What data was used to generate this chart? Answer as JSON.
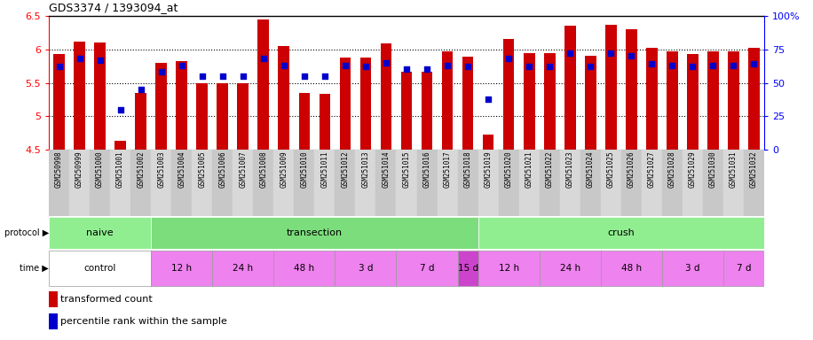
{
  "title": "GDS3374 / 1393094_at",
  "samples": [
    "GSM250998",
    "GSM250999",
    "GSM251000",
    "GSM251001",
    "GSM251002",
    "GSM251003",
    "GSM251004",
    "GSM251005",
    "GSM251006",
    "GSM251007",
    "GSM251008",
    "GSM251009",
    "GSM251010",
    "GSM251011",
    "GSM251012",
    "GSM251013",
    "GSM251014",
    "GSM251015",
    "GSM251016",
    "GSM251017",
    "GSM251018",
    "GSM251019",
    "GSM251020",
    "GSM251021",
    "GSM251022",
    "GSM251023",
    "GSM251024",
    "GSM251025",
    "GSM251026",
    "GSM251027",
    "GSM251028",
    "GSM251029",
    "GSM251030",
    "GSM251031",
    "GSM251032"
  ],
  "red_values": [
    5.93,
    6.12,
    6.1,
    4.63,
    5.35,
    5.8,
    5.82,
    5.5,
    5.5,
    5.5,
    6.45,
    6.05,
    5.35,
    5.33,
    5.88,
    5.88,
    6.09,
    5.67,
    5.66,
    5.97,
    5.89,
    4.72,
    6.16,
    5.95,
    5.95,
    6.36,
    5.91,
    6.37,
    6.3,
    6.02,
    5.97,
    5.93,
    5.97,
    5.97,
    6.02
  ],
  "blue_values": [
    62,
    68,
    67,
    30,
    45,
    58,
    63,
    55,
    55,
    55,
    68,
    63,
    55,
    55,
    63,
    62,
    65,
    60,
    60,
    63,
    62,
    38,
    68,
    62,
    62,
    72,
    62,
    72,
    70,
    64,
    63,
    62,
    63,
    63,
    64
  ],
  "ylim_left": [
    4.5,
    6.5
  ],
  "ylim_right": [
    0,
    100
  ],
  "yticks_left": [
    4.5,
    5.0,
    5.5,
    6.0,
    6.5
  ],
  "yticks_right": [
    0,
    25,
    50,
    75,
    100
  ],
  "ytick_labels_right": [
    "0",
    "25",
    "50",
    "75",
    "100%"
  ],
  "bar_color": "#cc0000",
  "blue_color": "#0000cc",
  "plot_bg": "#ffffff",
  "legend_red": "transformed count",
  "legend_blue": "percentile rank within the sample",
  "protocol_label": "protocol",
  "time_label": "time",
  "proto_defs": [
    [
      0,
      4,
      "#90ee90",
      "naive"
    ],
    [
      5,
      20,
      "#7cdd7c",
      "transection"
    ],
    [
      21,
      34,
      "#90ee90",
      "crush"
    ]
  ],
  "time_defs": [
    [
      0,
      4,
      "#ffffff",
      "control"
    ],
    [
      5,
      7,
      "#ee82ee",
      "12 h"
    ],
    [
      8,
      10,
      "#ee82ee",
      "24 h"
    ],
    [
      11,
      13,
      "#ee82ee",
      "48 h"
    ],
    [
      14,
      16,
      "#ee82ee",
      "3 d"
    ],
    [
      17,
      19,
      "#ee82ee",
      "7 d"
    ],
    [
      20,
      20,
      "#cc44cc",
      "15 d"
    ],
    [
      21,
      23,
      "#ee82ee",
      "12 h"
    ],
    [
      24,
      26,
      "#ee82ee",
      "24 h"
    ],
    [
      27,
      29,
      "#ee82ee",
      "48 h"
    ],
    [
      30,
      32,
      "#ee82ee",
      "3 d"
    ],
    [
      33,
      34,
      "#ee82ee",
      "7 d"
    ]
  ]
}
